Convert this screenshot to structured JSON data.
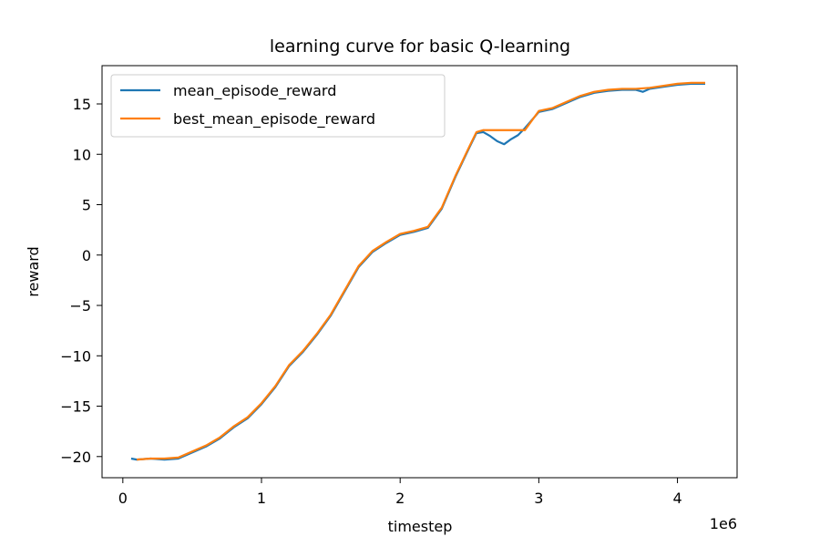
{
  "chart_data": {
    "type": "line",
    "title": "learning curve for basic Q-learning",
    "xlabel": "timestep",
    "ylabel": "reward",
    "x_offset_label": "1e6",
    "xlim": [
      -0.15,
      4.43
    ],
    "ylim": [
      -22.1,
      18.8
    ],
    "xticks": [
      0,
      1,
      2,
      3,
      4
    ],
    "xtick_labels": [
      "0",
      "1",
      "2",
      "3",
      "4"
    ],
    "yticks": [
      -20,
      -15,
      -10,
      -5,
      0,
      5,
      10,
      15
    ],
    "ytick_labels": [
      "−20",
      "−15",
      "−10",
      "−5",
      "0",
      "5",
      "10",
      "15"
    ],
    "grid": false,
    "legend_position": "upper-left",
    "series": [
      {
        "name": "mean_episode_reward",
        "color": "#1f77b4",
        "x": [
          0.06,
          0.1,
          0.2,
          0.3,
          0.4,
          0.5,
          0.6,
          0.7,
          0.8,
          0.9,
          1.0,
          1.1,
          1.2,
          1.3,
          1.4,
          1.5,
          1.6,
          1.7,
          1.8,
          1.9,
          2.0,
          2.1,
          2.2,
          2.3,
          2.4,
          2.5,
          2.55,
          2.6,
          2.65,
          2.7,
          2.75,
          2.8,
          2.85,
          2.9,
          3.0,
          3.1,
          3.2,
          3.3,
          3.4,
          3.5,
          3.6,
          3.7,
          3.75,
          3.8,
          3.9,
          4.0,
          4.1,
          4.2
        ],
        "values": [
          -20.2,
          -20.3,
          -20.2,
          -20.3,
          -20.2,
          -19.6,
          -19.0,
          -18.2,
          -17.1,
          -16.2,
          -14.8,
          -13.1,
          -11.0,
          -9.6,
          -7.9,
          -6.0,
          -3.6,
          -1.2,
          0.3,
          1.2,
          2.0,
          2.3,
          2.7,
          4.6,
          7.8,
          10.7,
          12.1,
          12.2,
          11.8,
          11.3,
          11.0,
          11.5,
          11.9,
          12.6,
          14.2,
          14.5,
          15.1,
          15.7,
          16.1,
          16.3,
          16.4,
          16.4,
          16.2,
          16.5,
          16.7,
          16.9,
          17.0,
          17.0
        ]
      },
      {
        "name": "best_mean_episode_reward",
        "color": "#ff7f0e",
        "x": [
          0.1,
          0.2,
          0.3,
          0.4,
          0.5,
          0.6,
          0.7,
          0.8,
          0.9,
          1.0,
          1.1,
          1.2,
          1.3,
          1.4,
          1.5,
          1.6,
          1.7,
          1.8,
          1.9,
          2.0,
          2.1,
          2.2,
          2.3,
          2.4,
          2.5,
          2.55,
          2.6,
          2.9,
          3.0,
          3.1,
          3.2,
          3.3,
          3.4,
          3.5,
          3.6,
          3.7,
          3.8,
          3.9,
          4.0,
          4.1,
          4.2
        ],
        "values": [
          -20.3,
          -20.2,
          -20.2,
          -20.1,
          -19.5,
          -18.9,
          -18.1,
          -17.0,
          -16.1,
          -14.7,
          -13.0,
          -10.9,
          -9.5,
          -7.8,
          -5.9,
          -3.5,
          -1.1,
          0.4,
          1.3,
          2.1,
          2.4,
          2.8,
          4.7,
          7.9,
          10.8,
          12.2,
          12.4,
          12.4,
          14.3,
          14.6,
          15.2,
          15.8,
          16.2,
          16.4,
          16.5,
          16.5,
          16.6,
          16.8,
          17.0,
          17.1,
          17.1
        ]
      }
    ]
  }
}
